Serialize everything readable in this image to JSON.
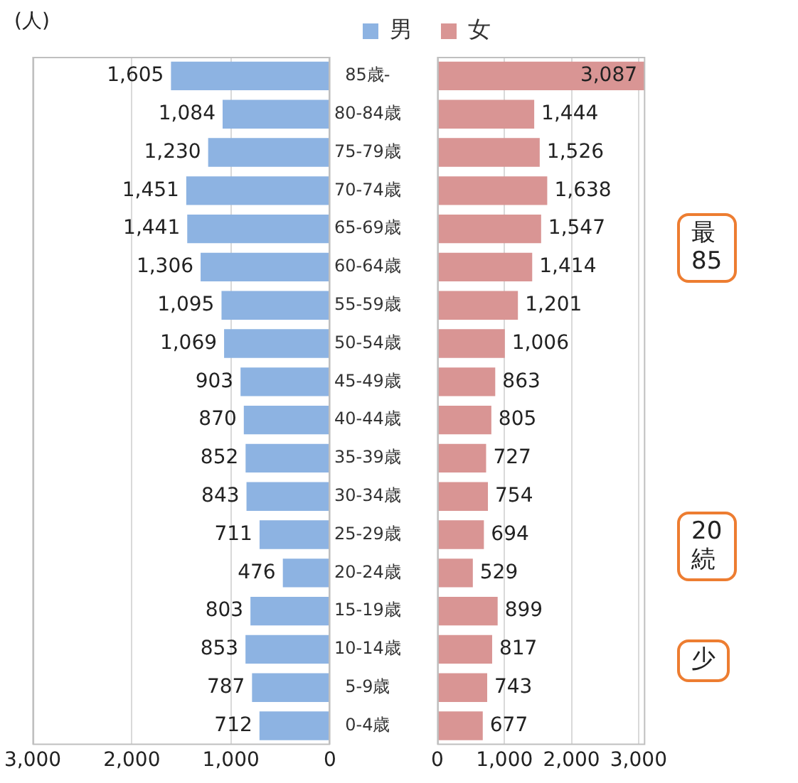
{
  "chart_data": [
    {
      "type": "bar",
      "orientation": "horizontal",
      "annotations": [
        "(人)"
      ],
      "categories": [
        "85歳-",
        "80-84歳",
        "75-79歳",
        "70-74歳",
        "65-69歳",
        "60-64歳",
        "55-59歳",
        "50-54歳",
        "45-49歳",
        "40-44歳",
        "35-39歳",
        "30-34歳",
        "25-29歳",
        "20-24歳",
        "15-19歳",
        "10-14歳",
        "5-9歳",
        "0-4歳"
      ],
      "series": [
        {
          "name": "男",
          "color": "#8db3e2",
          "values": [
            1605,
            1084,
            1230,
            1451,
            1441,
            1306,
            1095,
            1069,
            903,
            870,
            852,
            843,
            711,
            476,
            803,
            853,
            787,
            712
          ],
          "value_labels": [
            "1,605",
            "1,084",
            "1,230",
            "1,451",
            "1,441",
            "1,306",
            "1,095",
            "1,069",
            "903",
            "870",
            "852",
            "843",
            "711",
            "476",
            "803",
            "853",
            "787",
            "712"
          ]
        }
      ],
      "xlim": [
        3000,
        0
      ],
      "xticks": [
        {
          "value": 3000,
          "label": "3,000"
        },
        {
          "value": 2000,
          "label": "2,000"
        },
        {
          "value": 1000,
          "label": "1,000"
        },
        0
      ],
      "grid": "x",
      "legend": "top"
    },
    {
      "type": "bar",
      "orientation": "horizontal",
      "annotations": [
        "最\n85",
        "20\n続",
        "少"
      ],
      "categories": [
        null,
        null,
        null,
        null,
        null,
        null,
        null,
        null,
        null,
        null,
        null,
        null,
        null,
        null,
        null,
        null,
        null,
        null
      ],
      "series": [
        {
          "name": "女",
          "color": "#d99594",
          "values": [
            3087,
            1444,
            1526,
            1638,
            1547,
            1414,
            1201,
            1006,
            863,
            805,
            727,
            754,
            694,
            529,
            899,
            817,
            743,
            677
          ],
          "value_labels": [
            "3,087",
            "1,444",
            "1,526",
            "1,638",
            "1,547",
            "1,414",
            "1,201",
            "1,006",
            "863",
            "805",
            "727",
            "754",
            "694",
            "529",
            "899",
            "817",
            "743",
            "677"
          ]
        }
      ],
      "xlim": [
        0,
        3100
      ],
      "xticks": [
        0,
        {
          "value": 1000,
          "label": "1,000"
        },
        {
          "value": 2000,
          "label": "2,000"
        },
        {
          "value": 3000,
          "label": "3,000"
        }
      ],
      "grid": "x",
      "legend": "top",
      "tick_labels": "x"
    }
  ]
}
